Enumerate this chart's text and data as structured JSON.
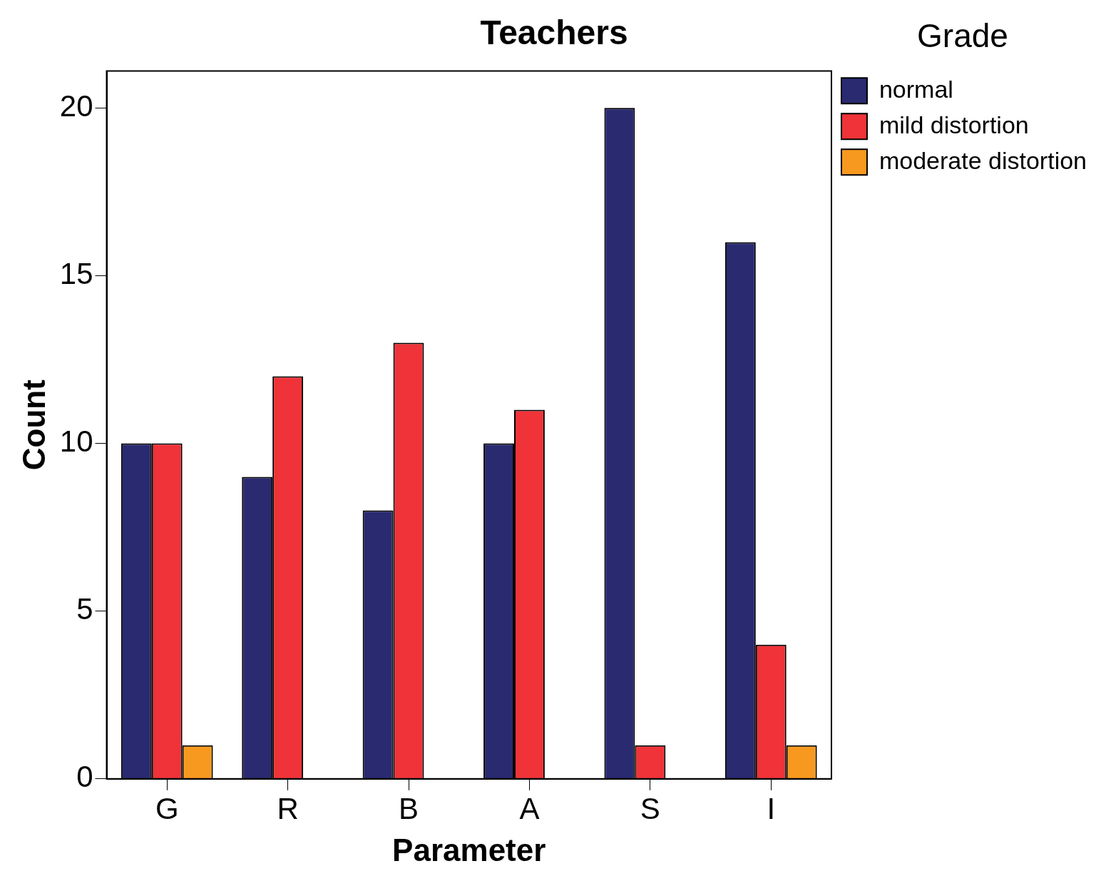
{
  "chart_data": {
    "type": "bar",
    "title": "Teachers",
    "xlabel": "Parameter",
    "ylabel": "Count",
    "legend_title": "Grade",
    "categories": [
      "G",
      "R",
      "B",
      "A",
      "S",
      "I"
    ],
    "series": [
      {
        "name": "normal",
        "color": "#292a70",
        "values": [
          10,
          9,
          8,
          10,
          20,
          16
        ]
      },
      {
        "name": "mild distortion",
        "color": "#ef3338",
        "values": [
          10,
          12,
          13,
          11,
          1,
          4
        ]
      },
      {
        "name": "moderate distortion",
        "color": "#f7991e",
        "values": [
          1,
          0,
          0,
          0,
          0,
          1
        ]
      }
    ],
    "ylim": [
      0,
      21.1
    ],
    "yticks": [
      0,
      5,
      10,
      15,
      20
    ],
    "grid": false,
    "legend": "right"
  }
}
